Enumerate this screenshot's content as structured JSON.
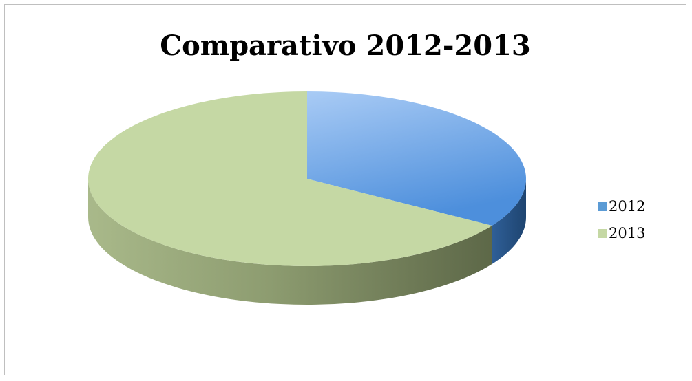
{
  "chart_data": {
    "type": "pie",
    "title": "Comparativo 2012-2013",
    "style": "3d",
    "legend_position": "right",
    "categories": [
      "2012",
      "2013"
    ],
    "values": [
      34,
      66
    ],
    "colors": [
      "#5b9bd5",
      "#c5d8a4"
    ]
  }
}
